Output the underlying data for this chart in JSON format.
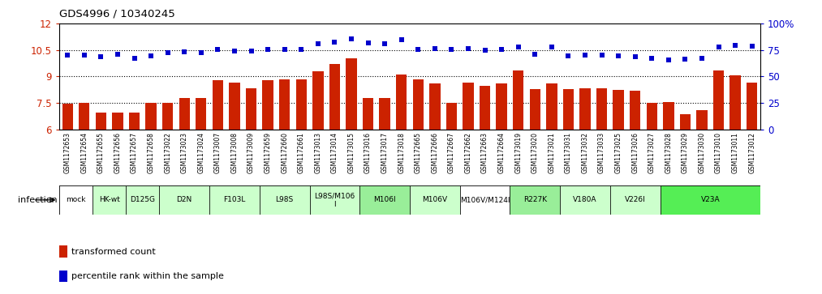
{
  "title": "GDS4996 / 10340245",
  "samples": [
    "GSM1172653",
    "GSM1172654",
    "GSM1172655",
    "GSM1172656",
    "GSM1172657",
    "GSM1172658",
    "GSM1173022",
    "GSM1173023",
    "GSM1173024",
    "GSM1173007",
    "GSM1173008",
    "GSM1173009",
    "GSM1172659",
    "GSM1172660",
    "GSM1172661",
    "GSM1173013",
    "GSM1173014",
    "GSM1173015",
    "GSM1173016",
    "GSM1173017",
    "GSM1173018",
    "GSM1172665",
    "GSM1172666",
    "GSM1172667",
    "GSM1172662",
    "GSM1172663",
    "GSM1172664",
    "GSM1173019",
    "GSM1173020",
    "GSM1173021",
    "GSM1173031",
    "GSM1173032",
    "GSM1173033",
    "GSM1173025",
    "GSM1173026",
    "GSM1173027",
    "GSM1173028",
    "GSM1173029",
    "GSM1173030",
    "GSM1173010",
    "GSM1173011",
    "GSM1173012"
  ],
  "bar_values": [
    7.45,
    7.48,
    6.95,
    6.95,
    6.95,
    7.48,
    7.5,
    7.8,
    7.8,
    8.8,
    8.65,
    8.35,
    8.8,
    8.85,
    8.85,
    9.3,
    9.7,
    10.05,
    7.8,
    7.8,
    9.1,
    8.85,
    8.6,
    7.5,
    8.65,
    8.45,
    8.6,
    9.35,
    8.3,
    8.6,
    8.3,
    8.35,
    8.35,
    8.25,
    8.2,
    7.5,
    7.55,
    6.85,
    7.1,
    9.35,
    9.05,
    8.65
  ],
  "dot_values": [
    10.2,
    10.2,
    10.1,
    10.25,
    10.05,
    10.15,
    10.35,
    10.4,
    10.35,
    10.55,
    10.45,
    10.45,
    10.55,
    10.55,
    10.55,
    10.85,
    10.95,
    11.15,
    10.9,
    10.85,
    11.1,
    10.55,
    10.6,
    10.55,
    10.6,
    10.5,
    10.55,
    10.65,
    10.25,
    10.65,
    10.15,
    10.2,
    10.2,
    10.15,
    10.1,
    10.05,
    9.95,
    10.0,
    10.05,
    10.65,
    10.75,
    10.7
  ],
  "groups": [
    {
      "label": "mock",
      "start": 0,
      "end": 2,
      "color": "#ffffff"
    },
    {
      "label": "HK-wt",
      "start": 2,
      "end": 4,
      "color": "#ccffcc"
    },
    {
      "label": "D125G",
      "start": 4,
      "end": 6,
      "color": "#ccffcc"
    },
    {
      "label": "D2N",
      "start": 6,
      "end": 9,
      "color": "#ccffcc"
    },
    {
      "label": "F103L",
      "start": 9,
      "end": 12,
      "color": "#ccffcc"
    },
    {
      "label": "L98S",
      "start": 12,
      "end": 15,
      "color": "#ccffcc"
    },
    {
      "label": "L98S/M106\nI",
      "start": 15,
      "end": 18,
      "color": "#ccffcc"
    },
    {
      "label": "M106I",
      "start": 18,
      "end": 21,
      "color": "#99ee99"
    },
    {
      "label": "M106V",
      "start": 21,
      "end": 24,
      "color": "#ccffcc"
    },
    {
      "label": "M106V/M124I",
      "start": 24,
      "end": 27,
      "color": "#ffffff"
    },
    {
      "label": "R227K",
      "start": 27,
      "end": 30,
      "color": "#99ee99"
    },
    {
      "label": "V180A",
      "start": 30,
      "end": 33,
      "color": "#ccffcc"
    },
    {
      "label": "V226I",
      "start": 33,
      "end": 36,
      "color": "#ccffcc"
    },
    {
      "label": "V23A",
      "start": 36,
      "end": 42,
      "color": "#55ee55"
    }
  ],
  "ylim_left": [
    6,
    12
  ],
  "yticks_left": [
    6,
    7.5,
    9,
    10.5,
    12
  ],
  "ytick_labels_left": [
    "6",
    "7.5",
    "9",
    "10.5",
    "12"
  ],
  "bar_color": "#cc2200",
  "dot_color": "#0000cc",
  "hline_values": [
    7.5,
    9.0,
    10.5
  ],
  "legend_items": [
    {
      "color": "#cc2200",
      "label": "transformed count"
    },
    {
      "color": "#0000cc",
      "label": "percentile rank within the sample"
    }
  ]
}
